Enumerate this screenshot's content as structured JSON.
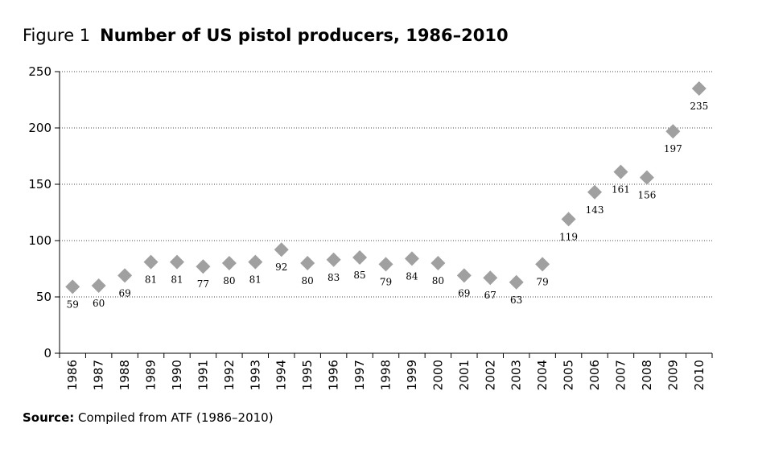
{
  "figure": {
    "prefix": "Figure 1",
    "title": "Number of US pistol producers, 1986–2010"
  },
  "source": {
    "label": "Source:",
    "text": "Compiled from ATF (1986–2010)"
  },
  "chart_data": {
    "type": "scatter",
    "title": "Number of US pistol producers, 1986–2010",
    "xlabel": "",
    "ylabel": "",
    "ylim": [
      0,
      250
    ],
    "yticks": [
      0,
      50,
      100,
      150,
      200,
      250
    ],
    "grid": "horizontal dotted",
    "marker": "diamond",
    "marker_color": "#a0a0a0",
    "categories": [
      "1986",
      "1987",
      "1988",
      "1989",
      "1990",
      "1991",
      "1992",
      "1993",
      "1994",
      "1995",
      "1996",
      "1997",
      "1998",
      "1999",
      "2000",
      "2001",
      "2002",
      "2003",
      "2004",
      "2005",
      "2006",
      "2007",
      "2008",
      "2009",
      "2010"
    ],
    "values": [
      59,
      60,
      69,
      81,
      81,
      77,
      80,
      81,
      92,
      80,
      83,
      85,
      79,
      84,
      80,
      69,
      67,
      63,
      79,
      119,
      143,
      161,
      156,
      197,
      235
    ],
    "data_labels": [
      "59",
      "60",
      "69",
      "81",
      "81",
      "77",
      "80",
      "81",
      "92",
      "80",
      "83",
      "85",
      "79",
      "84",
      "80",
      "69",
      "67",
      "63",
      "79",
      "119",
      "143",
      "161",
      "156",
      "197",
      "235"
    ]
  }
}
